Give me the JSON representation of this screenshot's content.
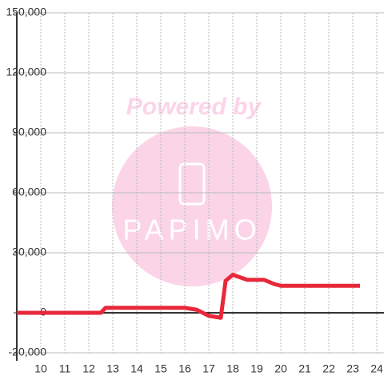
{
  "chart_data": {
    "type": "line",
    "watermark": {
      "title": "Powered by",
      "logo": "PAPIMO"
    },
    "x": [
      9,
      12.5,
      12.7,
      16,
      16.5,
      17,
      17.5,
      17.7,
      18,
      18.6,
      19.3,
      19.7,
      20,
      23.3
    ],
    "series": [
      {
        "color": "#e8283a",
        "values": [
          0,
          0,
          2500,
          2500,
          1500,
          -1500,
          -2500,
          16000,
          19000,
          16500,
          16500,
          14500,
          13500,
          13500
        ]
      }
    ],
    "xlim": [
      9,
      24.3
    ],
    "xticks": [
      10,
      11,
      12,
      13,
      14,
      15,
      16,
      17,
      18,
      19,
      20,
      21,
      22,
      23,
      24
    ],
    "ylim": [
      -20000,
      150000
    ],
    "yticks": [
      {
        "value": -20000,
        "label": "-20,000"
      },
      0,
      {
        "value": 30000,
        "label": "30,000"
      },
      {
        "value": 60000,
        "label": "60,000"
      },
      {
        "value": 90000,
        "label": "90,000"
      },
      {
        "value": 120000,
        "label": "120,000"
      },
      {
        "value": 150000,
        "label": "150,000"
      }
    ],
    "grid": true
  }
}
